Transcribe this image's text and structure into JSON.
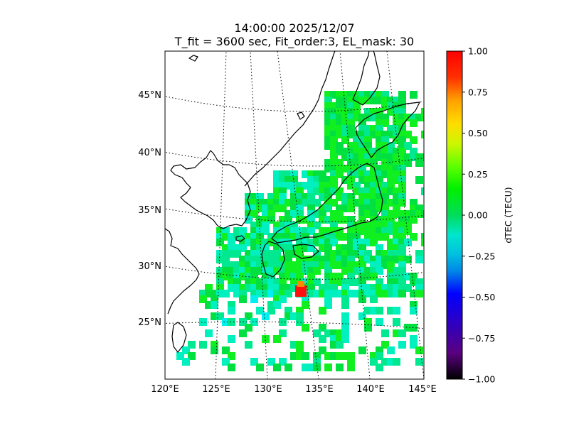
{
  "title": {
    "line1": "14:00:00 2025/12/07",
    "line2": "T_fit = 3600 sec, Fit_order:3, EL_mask: 30"
  },
  "map": {
    "projection": "conic",
    "lon_range": [
      120,
      145
    ],
    "lat_range": [
      20,
      49
    ],
    "graticule_style": "dotted",
    "lon_labels": [
      "120°E",
      "125°E",
      "130°E",
      "135°E",
      "140°E",
      "145°E"
    ],
    "lat_labels": [
      "25°N",
      "30°N",
      "35°N",
      "40°N",
      "45°N"
    ]
  },
  "colorbar": {
    "label": "dTEC (TECU)",
    "min": -1.0,
    "max": 1.0,
    "colormap": "nipy_spectral-like",
    "ticks": [
      "1.00",
      "0.75",
      "0.50",
      "0.25",
      "0.00",
      "−0.25",
      "−0.50",
      "−0.75",
      "−1.00"
    ]
  },
  "chart_data": {
    "type": "heatmap",
    "variable": "dTEC",
    "units": "TECU",
    "note_values": "dominant values near 0.0 to +0.25 TECU; localized maximum ~+1.0 TECU near 27.7°N 133.4°E",
    "regions": [
      {
        "lon_min": 130.0,
        "lon_max": 144.0,
        "lat_min": 30.0,
        "lat_max": 45.5,
        "value": 0.12
      },
      {
        "lon_min": 129.0,
        "lon_max": 141.0,
        "lat_min": 30.5,
        "lat_max": 37.0,
        "value": 0.08
      },
      {
        "lon_min": 125.0,
        "lon_max": 132.0,
        "lat_min": 25.0,
        "lat_max": 34.0,
        "value": 0.02
      },
      {
        "lon_min": 123.0,
        "lon_max": 131.0,
        "lat_min": 22.5,
        "lat_max": 27.0,
        "value": 0.05
      }
    ],
    "peak": {
      "lon": 133.4,
      "lat": 27.7,
      "value": 1.0
    }
  }
}
